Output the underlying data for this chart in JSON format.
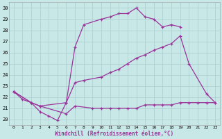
{
  "xlabel": "Windchill (Refroidissement éolien,°C)",
  "bg_color": "#c8e8e8",
  "grid_color": "#aacccc",
  "line_color": "#993399",
  "xlim": [
    -0.5,
    23.5
  ],
  "ylim": [
    19.5,
    30.5
  ],
  "yticks": [
    20,
    21,
    22,
    23,
    24,
    25,
    26,
    27,
    28,
    29,
    30
  ],
  "xticks": [
    0,
    1,
    2,
    3,
    4,
    5,
    6,
    7,
    8,
    9,
    10,
    11,
    12,
    13,
    14,
    15,
    16,
    17,
    18,
    19,
    20,
    21,
    22,
    23
  ],
  "series": [
    {
      "x": [
        0,
        1,
        2,
        3,
        4,
        5,
        6,
        7,
        8,
        10,
        11,
        12,
        13,
        14,
        15,
        16,
        17,
        18,
        19
      ],
      "y": [
        22.5,
        21.8,
        21.5,
        20.7,
        20.3,
        19.9,
        21.5,
        26.5,
        28.5,
        29.0,
        29.2,
        29.5,
        29.5,
        30.0,
        29.2,
        29.0,
        28.3,
        28.5,
        28.3
      ]
    },
    {
      "x": [
        0,
        2,
        3,
        6,
        7,
        8,
        10,
        11,
        12,
        13,
        14,
        15,
        16,
        17,
        18,
        19,
        20,
        22,
        23
      ],
      "y": [
        22.5,
        21.5,
        21.2,
        21.5,
        23.3,
        23.5,
        23.8,
        24.2,
        24.5,
        25.0,
        25.5,
        25.8,
        26.2,
        26.5,
        26.8,
        27.5,
        25.0,
        22.3,
        21.5
      ]
    },
    {
      "x": [
        0,
        2,
        3,
        6,
        7,
        9,
        10,
        11,
        12,
        13,
        14,
        15,
        16,
        17,
        18,
        19,
        20,
        21,
        22,
        23
      ],
      "y": [
        22.5,
        21.5,
        21.2,
        20.5,
        21.2,
        21.0,
        21.0,
        21.0,
        21.0,
        21.0,
        21.0,
        21.3,
        21.3,
        21.3,
        21.3,
        21.5,
        21.5,
        21.5,
        21.5,
        21.5
      ]
    }
  ]
}
